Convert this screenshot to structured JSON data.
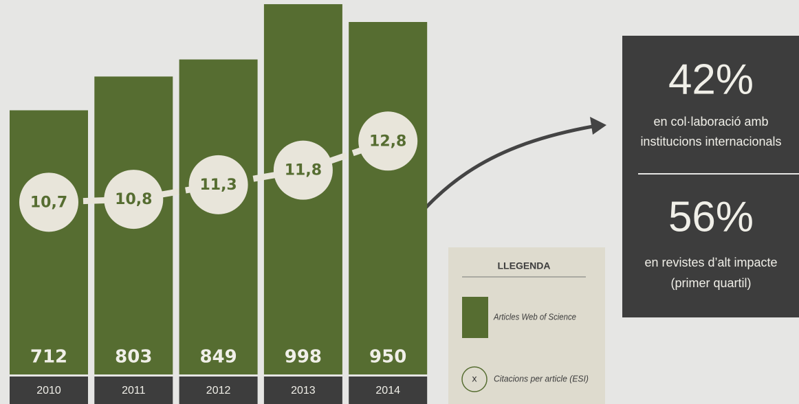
{
  "chart_data": {
    "type": "bar",
    "categories": [
      "2010",
      "2011",
      "2012",
      "2013",
      "2014"
    ],
    "series": [
      {
        "name": "Articles Web of Science",
        "color": "#566d31",
        "values": [
          712,
          803,
          849,
          998,
          950
        ]
      },
      {
        "name": "Citacions per article (ESI)",
        "type": "line",
        "color": "#e8e5da",
        "values": [
          10.7,
          10.8,
          11.3,
          11.8,
          12.8
        ],
        "value_labels": [
          "10,7",
          "10,8",
          "11,3",
          "11,8",
          "12,8"
        ]
      }
    ],
    "legend": {
      "title": "LLEGENDA",
      "marker_label": "x"
    },
    "highlights": [
      {
        "value": "42%",
        "lines": [
          "en col·laboració amb",
          "institucions internacionals"
        ]
      },
      {
        "value": "56%",
        "lines": [
          "en revistes d’alt impacte",
          "(primer quartil)"
        ]
      }
    ]
  }
}
